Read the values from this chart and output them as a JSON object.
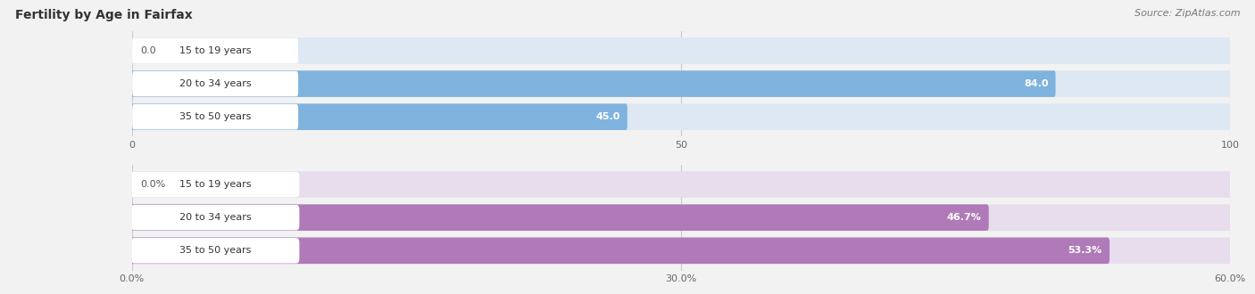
{
  "title": "Fertility by Age in Fairfax",
  "source": "Source: ZipAtlas.com",
  "chart1": {
    "categories": [
      "15 to 19 years",
      "20 to 34 years",
      "35 to 50 years"
    ],
    "values": [
      0.0,
      84.0,
      45.0
    ],
    "xlim": [
      0,
      100
    ],
    "xticks": [
      0.0,
      50.0,
      100.0
    ],
    "bar_color": "#7fb3de",
    "bar_bg_color": "#dde8f3",
    "label_inside_color": "#ffffff",
    "label_outside_color": "#555555",
    "value_labels": [
      "0.0",
      "84.0",
      "45.0"
    ]
  },
  "chart2": {
    "categories": [
      "15 to 19 years",
      "20 to 34 years",
      "35 to 50 years"
    ],
    "values": [
      0.0,
      46.7,
      53.3
    ],
    "xlim": [
      0,
      60
    ],
    "xticks": [
      0.0,
      30.0,
      60.0
    ],
    "xtick_labels": [
      "0.0%",
      "30.0%",
      "60.0%"
    ],
    "bar_color": "#b07ab8",
    "bar_bg_color": "#e8dded",
    "label_inside_color": "#ffffff",
    "label_outside_color": "#555555",
    "value_labels": [
      "0.0%",
      "46.7%",
      "53.3%"
    ]
  },
  "title_fontsize": 10,
  "source_fontsize": 8,
  "label_fontsize": 8,
  "value_fontsize": 8,
  "tick_fontsize": 8,
  "bg_color": "#f2f2f2",
  "bar_height": 0.55,
  "label_color": "#333333"
}
